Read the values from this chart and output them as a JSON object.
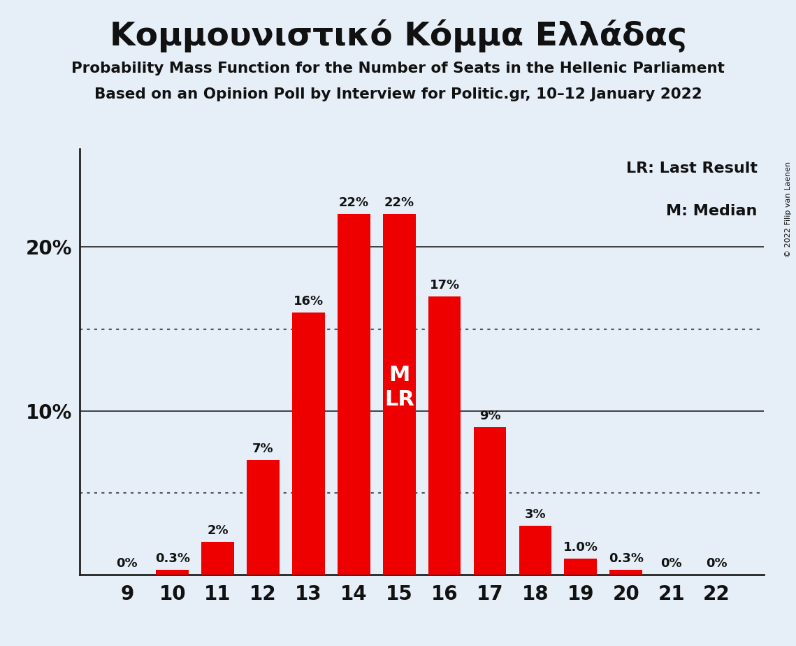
{
  "title": "Κομμουνιστικό Κόμμα Ελλάδας",
  "subtitle1": "Probability Mass Function for the Number of Seats in the Hellenic Parliament",
  "subtitle2": "Based on an Opinion Poll by Interview for Politic.gr, 10–12 January 2022",
  "copyright": "© 2022 Filip van Laenen",
  "categories": [
    9,
    10,
    11,
    12,
    13,
    14,
    15,
    16,
    17,
    18,
    19,
    20,
    21,
    22
  ],
  "values": [
    0.0,
    0.3,
    2.0,
    7.0,
    16.0,
    22.0,
    22.0,
    17.0,
    9.0,
    3.0,
    1.0,
    0.3,
    0.0,
    0.0
  ],
  "labels": [
    "0%",
    "0.3%",
    "2%",
    "7%",
    "16%",
    "22%",
    "22%",
    "17%",
    "9%",
    "3%",
    "1.0%",
    "0.3%",
    "0%",
    "0%"
  ],
  "bar_color": "#ee0000",
  "background_color": "#e6eff8",
  "text_color": "#111111",
  "median_bar": 15,
  "lr_bar": 15,
  "dotted_lines": [
    5.0,
    15.0
  ],
  "solid_lines": [
    10.0,
    20.0
  ],
  "ylim": [
    0,
    26
  ],
  "legend_lr": "LR: Last Result",
  "legend_m": "M: Median"
}
